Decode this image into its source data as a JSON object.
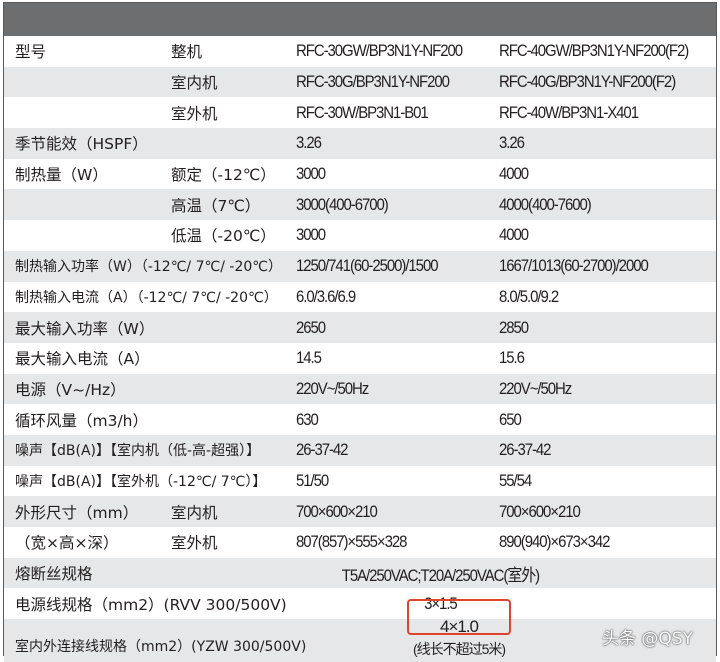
{
  "rows": [
    {
      "c1": "型号",
      "c2": "整机",
      "c3": "RFC-30GW/BP3N1Y-NF200",
      "c4": "RFC-40GW/BP3N1Y-NF200(F2)"
    },
    {
      "c1": "",
      "c2": "室内机",
      "c3": "RFC-30G/BP3N1Y-NF200",
      "c4": "RFC-40G/BP3N1Y-NF200(F2)"
    },
    {
      "c1": "",
      "c2": "室外机",
      "c3": "RFC-30W/BP3N1-B01",
      "c4": "RFC-40W/BP3N1-X401"
    },
    {
      "c1": "季节能效（HSPF）",
      "c2": "",
      "c3": "3.26",
      "c4": "3.26"
    },
    {
      "c1": "制热量（W）",
      "c2": "额定（-12℃）",
      "c3": "3000",
      "c4": "4000"
    },
    {
      "c1": "",
      "c2": "高温（7℃）",
      "c3": "3000(400-6700)",
      "c4": "4000(400-7600)"
    },
    {
      "c1": "",
      "c2": "低温（-20℃）",
      "c3": "3000",
      "c4": "4000"
    },
    {
      "c1": "制热输入功率（W）（-12℃/ 7℃/ -20℃）",
      "c2": "",
      "c3": "1250/741(60-2500)/1500",
      "c4": "1667/1013(60-2700)/2000",
      "small": true
    },
    {
      "c1": "制热输入电流（A）（-12℃/ 7℃/ -20℃）",
      "c2": "",
      "c3": "6.0/3.6/6.9",
      "c4": "8.0/5.0/9.2",
      "small": true
    },
    {
      "c1": "最大输入功率（W）",
      "c2": "",
      "c3": "2650",
      "c4": "2850"
    },
    {
      "c1": "最大输入电流（A）",
      "c2": "",
      "c3": "14.5",
      "c4": "15.6"
    },
    {
      "c1": "电源（V~/Hz）",
      "c2": "",
      "c3": "220V~/50Hz",
      "c4": "220V~/50Hz"
    },
    {
      "c1": "循环风量（m3/h）",
      "c2": "",
      "c3": "630",
      "c4": "650"
    },
    {
      "c1": "噪声【dB(A)】【室内机（低-高-超强）】",
      "c2": "",
      "c3": "26-37-42",
      "c4": "26-37-42",
      "small": true
    },
    {
      "c1": "噪声【dB(A)】【室外机（-12℃/ 7℃）】",
      "c2": "",
      "c3": "51/50",
      "c4": "55/54",
      "small": true
    },
    {
      "c1": "外形尺寸（mm）",
      "c2": "室内机",
      "c3": "700×600×210",
      "c4": "700×600×210"
    },
    {
      "c1": "（宽×高×深）",
      "c2": "室外机",
      "c3": "807(857)×555×328",
      "c4": "890(940)×673×342"
    },
    {
      "c1": "熔断丝规格",
      "merged": "T5A/250VAC;T20A/250VAC(室外)"
    },
    {
      "c1": "电源线规格（mm2）(RVV 300/500V)",
      "merged": "3×1.5"
    }
  ],
  "last": {
    "c1": "室内外连接线规格（mm2）(YZW 300/500V)",
    "value": "4×1.0",
    "note": "(线长不超过5米)"
  },
  "watermark": "头条 @QSY",
  "colors": {
    "header": "#6d6e70",
    "stripe": "#e6e7e8",
    "highlight": "#e0442c"
  }
}
